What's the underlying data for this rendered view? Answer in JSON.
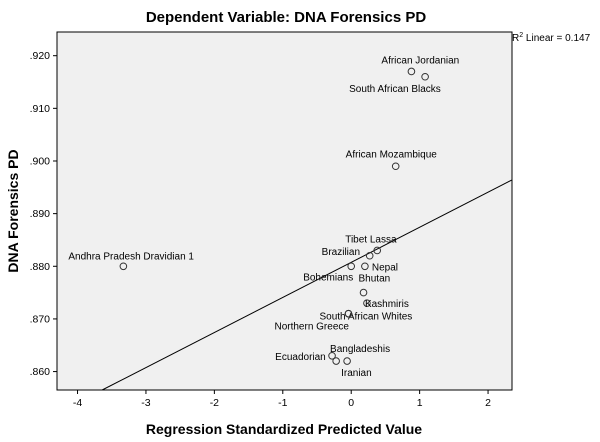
{
  "chart_data": {
    "type": "scatter",
    "title": "Dependent Variable: DNA Forensics PD",
    "xlabel": "Regression Standardized Predicted Value",
    "ylabel": "DNA Forensics PD",
    "xlim": [
      -4.3,
      2.35
    ],
    "ylim": [
      0.8565,
      0.9245
    ],
    "x_ticks": [
      -4,
      -3,
      -2,
      -1,
      0,
      1,
      2
    ],
    "x_tick_labels": [
      "-4",
      "-3",
      "-2",
      "-1",
      "0",
      "1",
      "2"
    ],
    "y_ticks": [
      0.86,
      0.87,
      0.88,
      0.89,
      0.9,
      0.91,
      0.92
    ],
    "y_tick_labels": [
      ".860",
      ".870",
      ".880",
      ".890",
      ".900",
      ".910",
      ".920"
    ],
    "grid": false,
    "background_color": "#f0f0f0",
    "points": [
      {
        "label": "African Jordanian",
        "x": 0.88,
        "y": 0.917
      },
      {
        "label": "South African Blacks",
        "x": 1.08,
        "y": 0.916
      },
      {
        "label": "African Mozambique",
        "x": 0.65,
        "y": 0.899
      },
      {
        "label": "Tibet Lassa",
        "x": 0.38,
        "y": 0.883
      },
      {
        "label": "Brazilian",
        "x": 0.27,
        "y": 0.882
      },
      {
        "label": "Andhra Pradesh Dravidian 1",
        "x": -3.33,
        "y": 0.88
      },
      {
        "label": "Nepal",
        "x": 0.2,
        "y": 0.88
      },
      {
        "label": "Bohemians",
        "x": 0.0,
        "y": 0.88
      },
      {
        "label": "Bhutan",
        "x": 0.18,
        "y": 0.875
      },
      {
        "label": "Kashmiris",
        "x": 0.23,
        "y": 0.873
      },
      {
        "label": "South African Whites",
        "x": -0.04,
        "y": 0.871
      },
      {
        "label": "Northern Greece",
        "x": -0.04,
        "y": 0.871
      },
      {
        "label": "Bangladeshis",
        "x": -0.28,
        "y": 0.863
      },
      {
        "label": "Ecuadorian",
        "x": -0.22,
        "y": 0.862
      },
      {
        "label": "Iranian",
        "x": -0.06,
        "y": 0.862
      }
    ],
    "fit_line": {
      "label": "R² Linear = 0.147",
      "x": [
        -3.64,
        2.35
      ],
      "y": [
        0.8565,
        0.8964
      ]
    }
  }
}
